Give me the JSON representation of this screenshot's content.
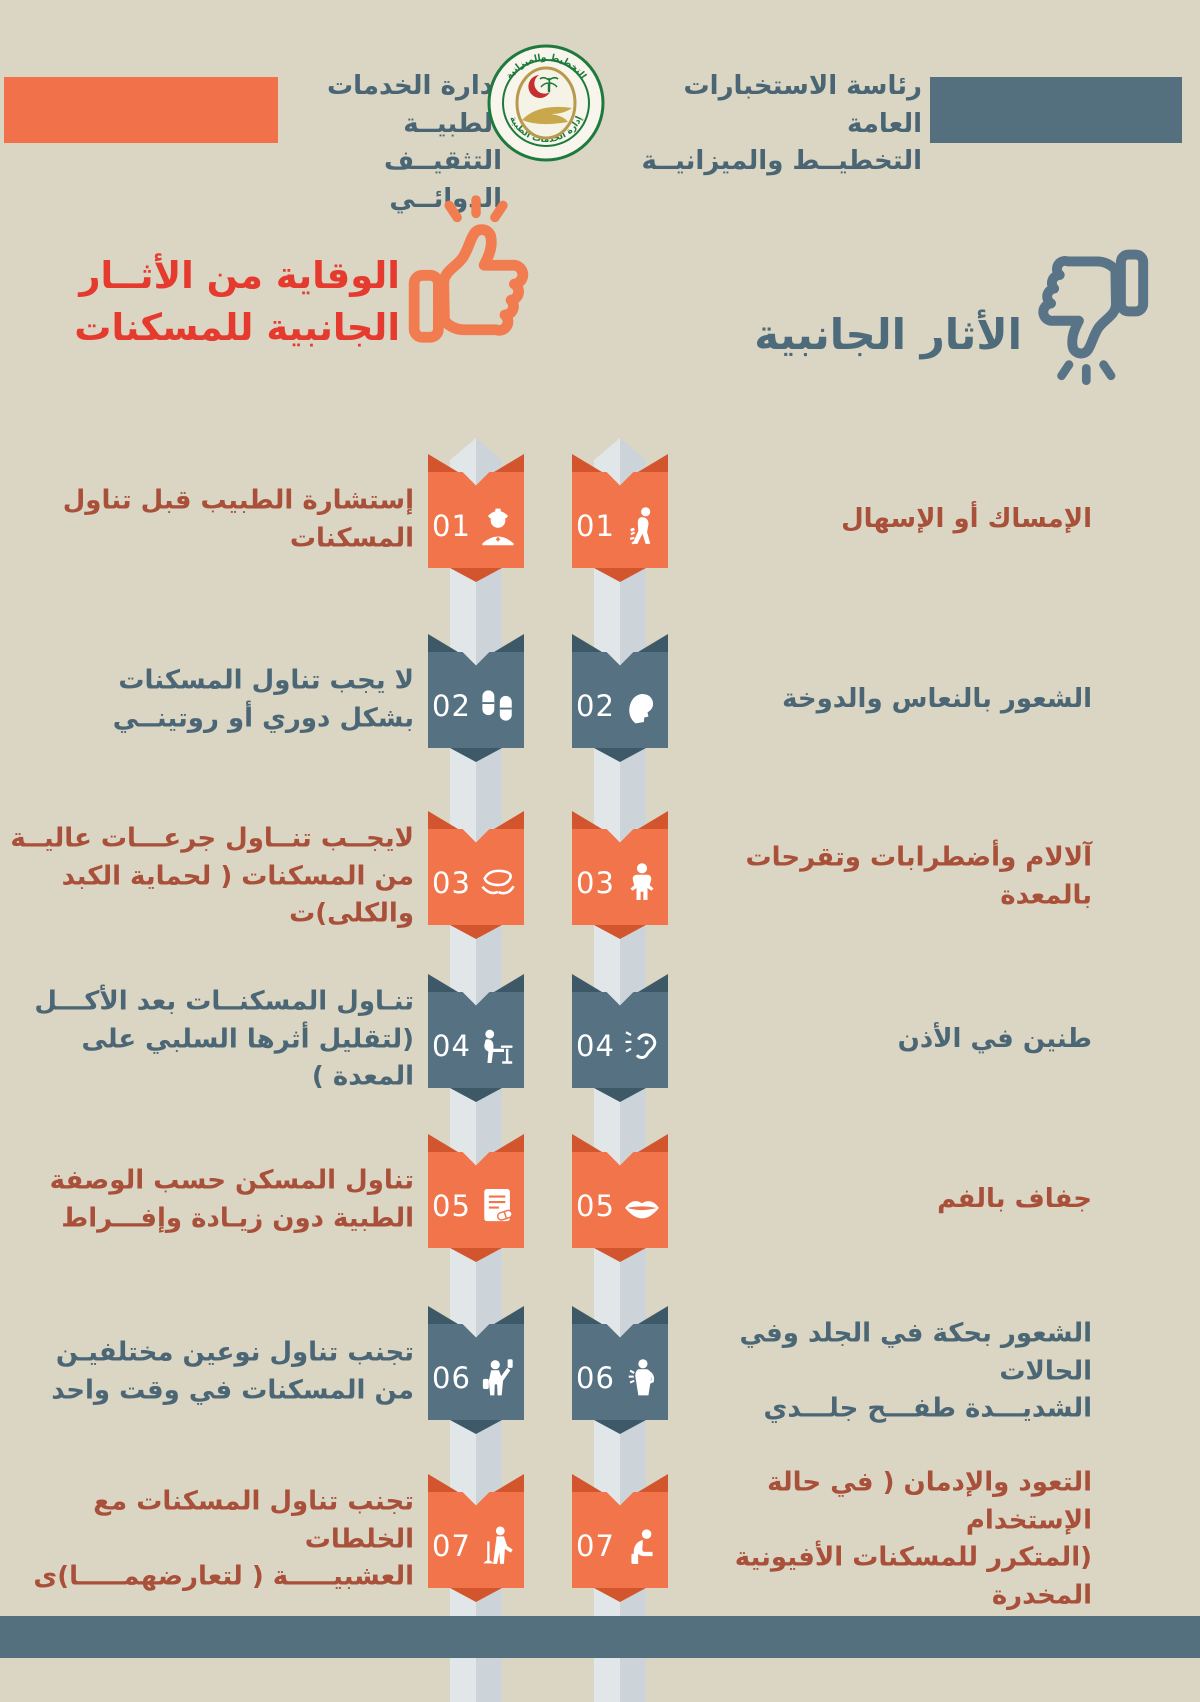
{
  "colors": {
    "background": "#dbd5c3",
    "orange": "#f2744b",
    "orange_dark": "#d2552e",
    "slate": "#567282",
    "slate_dark": "#3d5967",
    "red_title": "#e53a2e",
    "brick_text": "#a8503a",
    "slate_text": "#4b6675",
    "ribbon_light": "#e1e6e9",
    "ribbon_dark": "#ccd4d9"
  },
  "header": {
    "bureau_line1": "رئاسة الاستخبارات العامة",
    "bureau_line2": "التخطيــط والميزانيــة",
    "dept_line1": "إدارة الخدمات الطبيــة",
    "dept_line2": "التثقيــف الدوائــي",
    "logo_top": "التخطيط والميزانية",
    "logo_bottom": "إدارة الخدمات الطبية"
  },
  "sections": {
    "effects_title": "الأثار الجانبية",
    "prevention_line1": "الوقاية من الأثــار",
    "prevention_line2": "الجانبية للمسكنات"
  },
  "rows": [
    {
      "num": "01",
      "tone": "orange",
      "effect": {
        "lines": [
          "الإمساك أو الإسهال"
        ],
        "icon": "person-diarrhea-icon"
      },
      "prevention": {
        "lines": [
          "إستشارة الطبيب قبل تناول المسكنات"
        ],
        "icon": "nurse-icon"
      }
    },
    {
      "num": "02",
      "tone": "slate",
      "effect": {
        "lines": [
          "الشعور بالنعاس والدوخة"
        ],
        "icon": "drowsy-face-icon"
      },
      "prevention": {
        "lines": [
          "لا يجب تناول المسكنات",
          "بشكل دوري أو روتينــي"
        ],
        "icon": "pills-icon"
      }
    },
    {
      "num": "03",
      "tone": "orange",
      "effect": {
        "lines": [
          "آلالام وأضطرابات وتقرحات بالمعدة"
        ],
        "icon": "stomach-pain-icon"
      },
      "prevention": {
        "lines": [
          "لايجــب تنــاول جرعـــات عاليــة",
          "من المسكنات ( لحماية الكبد والكلى)ت"
        ],
        "icon": "hands-liver-icon"
      }
    },
    {
      "num": "04",
      "tone": "slate",
      "effect": {
        "lines": [
          "طنين في الأذن"
        ],
        "icon": "ear-ringing-icon"
      },
      "prevention": {
        "lines": [
          "تنـاول المسكنــات بعد الأكـــل",
          "(لتقليل أثرها السلبي على المعدة )"
        ],
        "icon": "person-eating-icon"
      }
    },
    {
      "num": "05",
      "tone": "orange",
      "effect": {
        "lines": [
          "جفاف بالفم"
        ],
        "icon": "lips-icon"
      },
      "prevention": {
        "lines": [
          "تناول المسكن حسب الوصفة",
          "الطبية دون زيـادة وإفـــراط"
        ],
        "icon": "prescription-icon"
      }
    },
    {
      "num": "06",
      "tone": "slate",
      "effect": {
        "lines": [
          "الشعور بحكة في الجلد وفي الحالات",
          "الشديـــدة طفـــح جلـــدي"
        ],
        "icon": "person-itching-icon"
      },
      "prevention": {
        "lines": [
          "تجنب تناول نوعين مختلفيـن",
          "من المسكنات في وقت واحد"
        ],
        "icon": "person-bottles-icon"
      }
    },
    {
      "num": "07",
      "tone": "orange",
      "effect": {
        "lines": [
          "التعود والإدمان ( في حالة الإستخدام",
          "(المتكرر للمسكنات الأفيونية المخدرة"
        ],
        "icon": "addiction-icon"
      },
      "prevention": {
        "lines": [
          "تجنب تناول المسكنات مع الخلطات",
          "العشبيـــــة ( لتعارضهمـــــا)ى"
        ],
        "icon": "person-herbs-icon"
      }
    }
  ]
}
